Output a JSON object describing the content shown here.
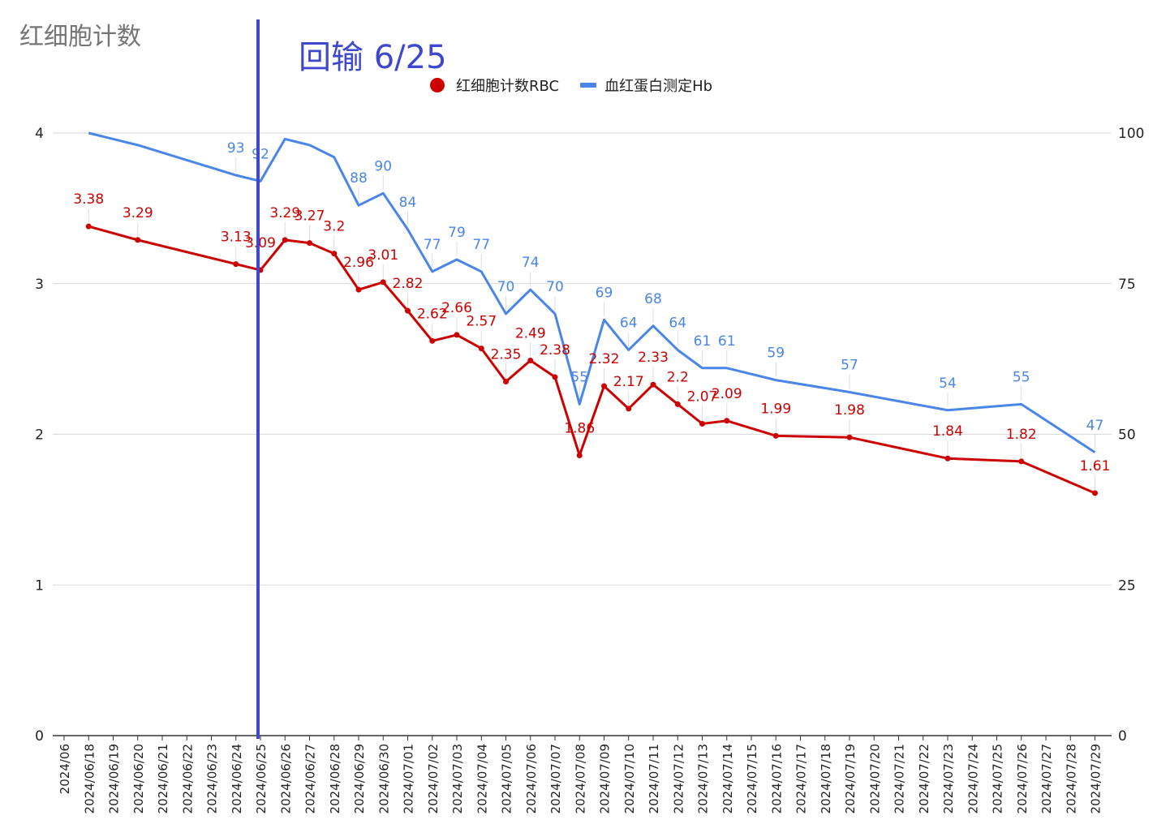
{
  "chart_data": {
    "type": "line",
    "title": "红细胞计数",
    "annotation": "回输 6/25",
    "annotation_date": "2024/06/25",
    "annotation_color": "#3f48cc",
    "categories": [
      "2024/06",
      "2024/06/18",
      "2024/06/19",
      "2024/06/20",
      "2024/06/21",
      "2024/06/22",
      "2024/06/23",
      "2024/06/24",
      "2024/06/25",
      "2024/06/26",
      "2024/06/27",
      "2024/06/28",
      "2024/06/29",
      "2024/06/30",
      "2024/07/01",
      "2024/07/02",
      "2024/07/03",
      "2024/07/04",
      "2024/07/05",
      "2024/07/06",
      "2024/07/07",
      "2024/07/08",
      "2024/07/09",
      "2024/07/10",
      "2024/07/11",
      "2024/07/12",
      "2024/07/13",
      "2024/07/14",
      "2024/07/15",
      "2024/07/16",
      "2024/07/17",
      "2024/07/18",
      "2024/07/19",
      "2024/07/20",
      "2024/07/21",
      "2024/07/22",
      "2024/07/23",
      "2024/07/24",
      "2024/07/25",
      "2024/07/26",
      "2024/07/27",
      "2024/07/28",
      "2024/07/29"
    ],
    "y_left": {
      "min": 0,
      "max": 4,
      "ticks": [
        0,
        1,
        2,
        3,
        4
      ]
    },
    "y_right": {
      "min": 0,
      "max": 100,
      "ticks": [
        0,
        25,
        50,
        75,
        100
      ]
    },
    "grid": true,
    "legend_position": "top",
    "series": [
      {
        "name": "红细胞计数RBC",
        "axis": "left",
        "color": "#cc0000",
        "marker": "dot",
        "points": [
          {
            "x": "2024/06/18",
            "y": 3.38
          },
          {
            "x": "2024/06/20",
            "y": 3.29
          },
          {
            "x": "2024/06/24",
            "y": 3.13
          },
          {
            "x": "2024/06/25",
            "y": 3.09
          },
          {
            "x": "2024/06/26",
            "y": 3.29
          },
          {
            "x": "2024/06/27",
            "y": 3.27
          },
          {
            "x": "2024/06/28",
            "y": 3.2
          },
          {
            "x": "2024/06/29",
            "y": 2.96
          },
          {
            "x": "2024/06/30",
            "y": 3.01
          },
          {
            "x": "2024/07/01",
            "y": 2.82
          },
          {
            "x": "2024/07/02",
            "y": 2.62
          },
          {
            "x": "2024/07/03",
            "y": 2.66
          },
          {
            "x": "2024/07/04",
            "y": 2.57
          },
          {
            "x": "2024/07/05",
            "y": 2.35
          },
          {
            "x": "2024/07/06",
            "y": 2.49
          },
          {
            "x": "2024/07/07",
            "y": 2.38
          },
          {
            "x": "2024/07/08",
            "y": 1.86
          },
          {
            "x": "2024/07/09",
            "y": 2.32
          },
          {
            "x": "2024/07/10",
            "y": 2.17
          },
          {
            "x": "2024/07/11",
            "y": 2.33
          },
          {
            "x": "2024/07/12",
            "y": 2.2
          },
          {
            "x": "2024/07/13",
            "y": 2.07
          },
          {
            "x": "2024/07/14",
            "y": 2.09
          },
          {
            "x": "2024/07/16",
            "y": 1.99
          },
          {
            "x": "2024/07/19",
            "y": 1.98
          },
          {
            "x": "2024/07/23",
            "y": 1.84
          },
          {
            "x": "2024/07/26",
            "y": 1.82
          },
          {
            "x": "2024/07/29",
            "y": 1.61
          }
        ]
      },
      {
        "name": "血红蛋白测定Hb",
        "axis": "right",
        "color": "#4a86e8",
        "marker": "none",
        "points": [
          {
            "x": "2024/06/18",
            "y": 100
          },
          {
            "x": "2024/06/20",
            "y": 98
          },
          {
            "x": "2024/06/24",
            "y": 93
          },
          {
            "x": "2024/06/25",
            "y": 92
          },
          {
            "x": "2024/06/26",
            "y": 99
          },
          {
            "x": "2024/06/27",
            "y": 98
          },
          {
            "x": "2024/06/28",
            "y": 96
          },
          {
            "x": "2024/06/29",
            "y": 88
          },
          {
            "x": "2024/06/30",
            "y": 90
          },
          {
            "x": "2024/07/01",
            "y": 84
          },
          {
            "x": "2024/07/02",
            "y": 77
          },
          {
            "x": "2024/07/03",
            "y": 79
          },
          {
            "x": "2024/07/04",
            "y": 77
          },
          {
            "x": "2024/07/05",
            "y": 70
          },
          {
            "x": "2024/07/06",
            "y": 74
          },
          {
            "x": "2024/07/07",
            "y": 70
          },
          {
            "x": "2024/07/08",
            "y": 55
          },
          {
            "x": "2024/07/09",
            "y": 69
          },
          {
            "x": "2024/07/10",
            "y": 64
          },
          {
            "x": "2024/07/11",
            "y": 68
          },
          {
            "x": "2024/07/12",
            "y": 64
          },
          {
            "x": "2024/07/13",
            "y": 61
          },
          {
            "x": "2024/07/14",
            "y": 61
          },
          {
            "x": "2024/07/16",
            "y": 59
          },
          {
            "x": "2024/07/19",
            "y": 57
          },
          {
            "x": "2024/07/23",
            "y": 54
          },
          {
            "x": "2024/07/26",
            "y": 55
          },
          {
            "x": "2024/07/29",
            "y": 47
          }
        ]
      }
    ],
    "data_labels": {
      "红细胞计数RBC": [
        "3.38",
        "3.29",
        "3.13",
        "3.09",
        "3.29",
        "3.27",
        "3.2",
        "2.96",
        "3.01",
        "2.82",
        "2.62",
        "2.66",
        "2.57",
        "2.35",
        "2.49",
        "2.38",
        "1.86",
        "2.32",
        "2.17",
        "2.33",
        "2.2",
        "2.07",
        "2.09",
        "1.99",
        "1.98",
        "1.84",
        "1.82",
        "1.61"
      ],
      "血红蛋白测定Hb": [
        null,
        null,
        "93",
        "92",
        null,
        null,
        null,
        "88",
        "90",
        "84",
        "77",
        "79",
        "77",
        "70",
        "74",
        "70",
        "55",
        "69",
        "64",
        "68",
        "64",
        "61",
        "61",
        "59",
        "57",
        "54",
        "55",
        "47"
      ]
    }
  }
}
